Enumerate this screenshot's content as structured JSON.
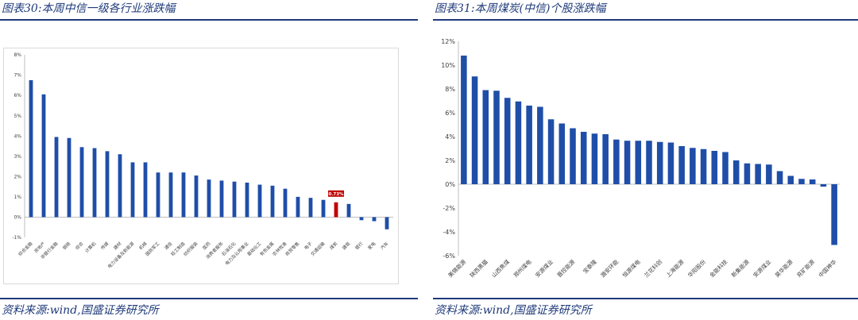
{
  "left_panel": {
    "title": "图表30:本周中信一级各行业涨跌幅",
    "source": "资料来源:wind,国盛证券研究所"
  },
  "right_panel": {
    "title": "图表31:本周煤炭(中信)个股涨跌幅",
    "source": "资料来源:wind,国盛证券研究所"
  },
  "colors": {
    "bar": "#1f4ea8",
    "highlight": "#c00000",
    "header": "#1e3a7a",
    "axis": "#bfbfbf"
  },
  "chart_data": [
    {
      "type": "bar",
      "title": "",
      "xlabel": "",
      "ylabel": "",
      "ylim": [
        -1,
        8
      ],
      "y_ticks": [
        "-1%",
        "0%",
        "1%",
        "2%",
        "3%",
        "4%",
        "5%",
        "6%",
        "7%",
        "8%"
      ],
      "categories": [
        "综合金融",
        "房地产",
        "非银行金融",
        "钢铁",
        "综合",
        "计算机",
        "传媒",
        "建材",
        "电力设备及新能源",
        "机械",
        "国防军工",
        "通信",
        "轻工制造",
        "纺织服装",
        "医药",
        "消费者服务",
        "石油石化",
        "电力及公用事业",
        "基础化工",
        "有色金属",
        "农林牧渔",
        "商贸零售",
        "电子",
        "交通运输",
        "煤炭",
        "建筑",
        "银行",
        "家电",
        "汽车"
      ],
      "values": [
        6.75,
        6.05,
        3.95,
        3.9,
        3.45,
        3.4,
        3.25,
        3.1,
        2.7,
        2.7,
        2.2,
        2.2,
        2.2,
        2.05,
        1.85,
        1.8,
        1.75,
        1.7,
        1.6,
        1.55,
        1.4,
        1.0,
        0.95,
        0.85,
        0.73,
        0.65,
        -0.15,
        -0.2,
        -0.6
      ],
      "highlight_index": 24,
      "annotation": "0.73%",
      "grid": false,
      "legend": "none"
    },
    {
      "type": "bar",
      "title": "",
      "xlabel": "",
      "ylabel": "",
      "ylim": [
        -6,
        12
      ],
      "y_ticks": [
        "-6%",
        "-4%",
        "-2%",
        "0%",
        "2%",
        "4%",
        "6%",
        "8%",
        "10%",
        "12%"
      ],
      "categories": [
        "美锦能源",
        "",
        "陕西黑猫",
        "",
        "山西焦煤",
        "",
        "郑州煤电",
        "",
        "安源煤业",
        "",
        "晋控能源",
        "",
        "宝泰隆",
        "",
        "潞安环能",
        "",
        "恒源煤电",
        "",
        "兰花科创",
        "",
        "上海能源",
        "",
        "华阳股份",
        "",
        "金能科技",
        "",
        "新集能源",
        "",
        "安源煤业",
        "",
        "昊华能源",
        "",
        "兖矿能源",
        "",
        "中国神华"
      ],
      "values": [
        10.8,
        9.05,
        7.9,
        7.85,
        7.25,
        6.95,
        6.6,
        6.5,
        5.45,
        5.1,
        4.7,
        4.4,
        4.25,
        4.2,
        3.75,
        3.65,
        3.65,
        3.65,
        3.55,
        3.5,
        3.2,
        3.05,
        2.95,
        2.8,
        2.7,
        2.0,
        1.75,
        1.7,
        1.65,
        1.1,
        0.7,
        0.45,
        0.4,
        -0.2,
        -5.1
      ],
      "grid": false,
      "legend": "none"
    }
  ]
}
